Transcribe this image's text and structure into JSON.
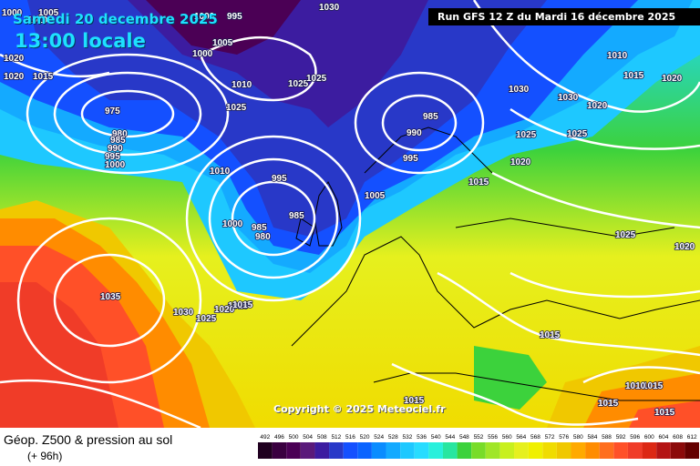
{
  "header": {
    "date": "Samedi 20 decembre 2025",
    "time": "13:00 locale",
    "run": "Run GFS 12 Z du Mardi 16 décembre 2025"
  },
  "map": {
    "copyright": "Copyright © 2025 Meteociel.fr",
    "isobar_labels": [
      "1005",
      "1010",
      "1000",
      "995",
      "1005",
      "1015",
      "1020",
      "1020",
      "975",
      "980",
      "985",
      "990",
      "995",
      "1000",
      "1025",
      "1025",
      "1025",
      "1030",
      "1010",
      "1000",
      "985",
      "990",
      "995",
      "1010",
      "995",
      "985",
      "1005",
      "1000",
      "985",
      "980",
      "1015",
      "1030",
      "1030",
      "1025",
      "1025",
      "1020",
      "1020",
      "1015",
      "1010",
      "1015",
      "1025",
      "1020",
      "1035",
      "1030",
      "1025",
      "1020",
      "1015",
      "1015",
      "1015",
      "1015",
      "1010",
      "1015",
      "1015",
      "1020",
      "1000",
      "1000",
      "1030"
    ],
    "colors": {
      "lowest": "#4b0055",
      "blue": "#1450ff",
      "cyan": "#1ed8ff",
      "green": "#3cd23c",
      "yellow": "#f0f000",
      "orange": "#ff8c00",
      "red": "#f03c28"
    }
  },
  "footer": {
    "title": "Géop. Z500 & pression au sol",
    "subtitle": "(+ 96h)",
    "scale_values": [
      "492",
      "496",
      "500",
      "504",
      "508",
      "512",
      "516",
      "520",
      "524",
      "528",
      "532",
      "536",
      "540",
      "544",
      "548",
      "552",
      "556",
      "560",
      "564",
      "568",
      "572",
      "576",
      "580",
      "584",
      "588",
      "592",
      "596",
      "600",
      "604",
      "608",
      "612"
    ],
    "scale_colors": [
      "#200020",
      "#3a0040",
      "#4b0055",
      "#5a1a7a",
      "#3c1ca0",
      "#2838c8",
      "#1450ff",
      "#0a64ff",
      "#0a8cff",
      "#14aaff",
      "#1ec8ff",
      "#28dcff",
      "#28f0dc",
      "#28e6a0",
      "#3cd23c",
      "#78dc28",
      "#a0e628",
      "#c8f01e",
      "#e6f01e",
      "#f0f000",
      "#f0dc00",
      "#f0c800",
      "#ffaa00",
      "#ff8c00",
      "#ff6e1e",
      "#ff5028",
      "#f03c28",
      "#dc2814",
      "#b41414",
      "#8c0a0a",
      "#640000"
    ]
  }
}
